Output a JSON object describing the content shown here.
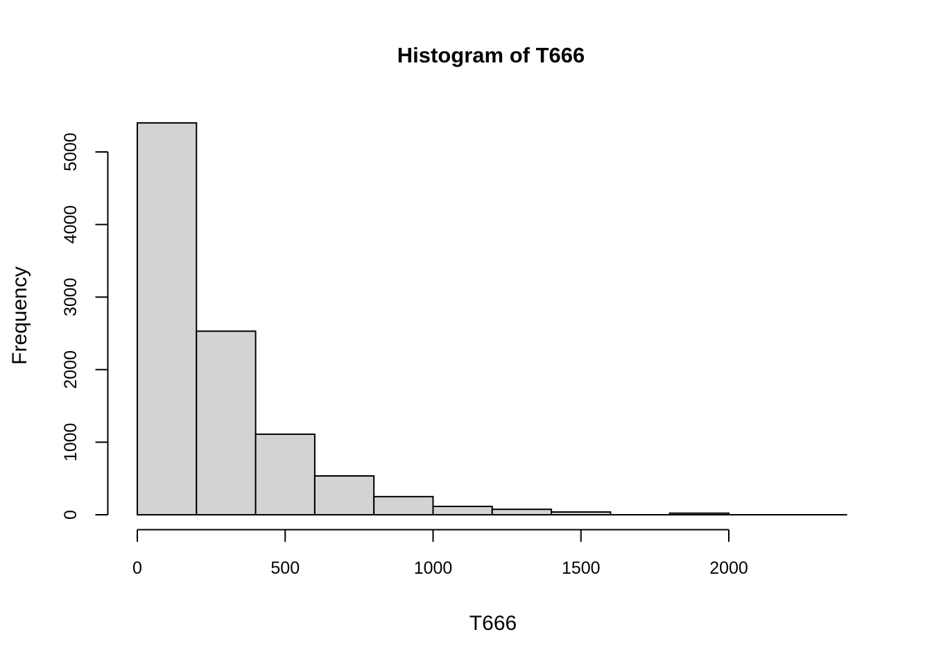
{
  "chart_data": {
    "type": "histogram",
    "title": "Histogram of T666",
    "xlabel": "T666",
    "ylabel": "Frequency",
    "bin_width": 200,
    "bin_edges": [
      0,
      200,
      400,
      600,
      800,
      1000,
      1200,
      1400,
      1600,
      1800,
      2000,
      2200,
      2400
    ],
    "counts": [
      5400,
      2530,
      1110,
      535,
      250,
      115,
      75,
      38,
      6,
      22,
      2,
      3
    ],
    "x_ticks": [
      0,
      500,
      1000,
      1500,
      2000
    ],
    "x_tick_labels": [
      "0",
      "500",
      "1000",
      "1500",
      "2000"
    ],
    "y_ticks": [
      0,
      1000,
      2000,
      3000,
      4000,
      5000
    ],
    "y_tick_labels": [
      "0",
      "1000",
      "2000",
      "3000",
      "4000",
      "5000"
    ],
    "xlim": [
      0,
      2400
    ],
    "ylim": [
      0,
      5400
    ],
    "grid": false,
    "legend": false,
    "colors": {
      "bar_fill": "#D3D3D3",
      "bar_border": "#000000",
      "axis": "#000000",
      "text": "#000000",
      "background": "#FFFFFF"
    }
  }
}
